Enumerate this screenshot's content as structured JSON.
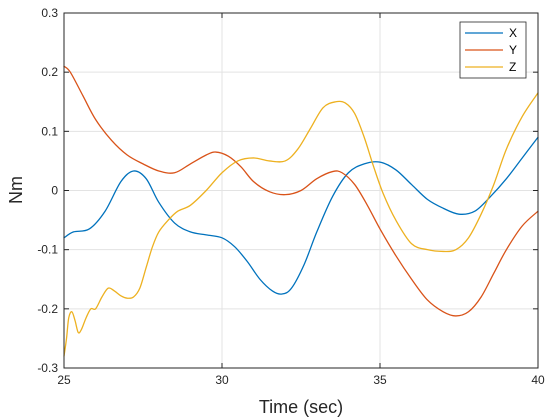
{
  "chart_data": {
    "type": "line",
    "xlabel": "Time (sec)",
    "ylabel": "Nm",
    "xlim": [
      25,
      40
    ],
    "ylim": [
      -0.3,
      0.3
    ],
    "xticks": [
      25,
      30,
      35,
      40
    ],
    "yticks": [
      -0.3,
      -0.2,
      -0.1,
      0,
      0.1,
      0.2,
      0.3
    ],
    "xtick_labels": [
      "25",
      "30",
      "35",
      "40"
    ],
    "ytick_labels": [
      "-0.3",
      "-0.2",
      "-0.1",
      "0",
      "0.1",
      "0.2",
      "0.3"
    ],
    "grid": true,
    "legend_position": "top-right",
    "series": [
      {
        "name": "X",
        "color": "#0072BD",
        "x": [
          25.0,
          25.3,
          25.8,
          26.3,
          26.8,
          27.2,
          27.6,
          28.0,
          28.5,
          29.0,
          29.5,
          30.0,
          30.4,
          30.8,
          31.2,
          31.6,
          31.9,
          32.2,
          32.6,
          33.0,
          33.5,
          34.0,
          34.5,
          35.0,
          35.5,
          36.0,
          36.5,
          37.0,
          37.5,
          38.0,
          38.5,
          39.0,
          39.5,
          40.0
        ],
        "y": [
          -0.08,
          -0.07,
          -0.065,
          -0.035,
          0.015,
          0.033,
          0.02,
          -0.02,
          -0.055,
          -0.07,
          -0.075,
          -0.08,
          -0.095,
          -0.12,
          -0.15,
          -0.17,
          -0.175,
          -0.165,
          -0.125,
          -0.07,
          -0.01,
          0.03,
          0.045,
          0.048,
          0.035,
          0.01,
          -0.015,
          -0.03,
          -0.04,
          -0.035,
          -0.01,
          0.02,
          0.055,
          0.09
        ]
      },
      {
        "name": "Y",
        "color": "#D95319",
        "x": [
          25.0,
          25.2,
          25.6,
          26.0,
          26.5,
          27.0,
          27.5,
          28.0,
          28.5,
          29.0,
          29.5,
          29.8,
          30.2,
          30.6,
          31.0,
          31.5,
          32.0,
          32.5,
          33.0,
          33.5,
          33.8,
          34.2,
          34.6,
          35.0,
          35.5,
          36.0,
          36.5,
          37.0,
          37.4,
          37.8,
          38.2,
          38.6,
          39.0,
          39.5,
          40.0
        ],
        "y": [
          0.21,
          0.2,
          0.16,
          0.12,
          0.085,
          0.06,
          0.045,
          0.033,
          0.03,
          0.045,
          0.06,
          0.065,
          0.058,
          0.04,
          0.015,
          -0.002,
          -0.007,
          0.0,
          0.02,
          0.032,
          0.03,
          0.01,
          -0.025,
          -0.065,
          -0.11,
          -0.15,
          -0.185,
          -0.205,
          -0.212,
          -0.205,
          -0.18,
          -0.14,
          -0.1,
          -0.06,
          -0.035
        ]
      },
      {
        "name": "Z",
        "color": "#EDB120",
        "x": [
          25.0,
          25.08,
          25.15,
          25.25,
          25.35,
          25.45,
          25.55,
          25.7,
          25.85,
          26.0,
          26.2,
          26.4,
          26.6,
          26.8,
          27.0,
          27.2,
          27.4,
          27.6,
          27.8,
          28.0,
          28.3,
          28.6,
          29.0,
          29.5,
          30.0,
          30.5,
          31.0,
          31.5,
          32.0,
          32.4,
          32.8,
          33.2,
          33.6,
          33.9,
          34.2,
          34.5,
          34.8,
          35.1,
          35.5,
          36.0,
          36.5,
          37.0,
          37.4,
          37.8,
          38.2,
          38.6,
          39.0,
          39.5,
          40.0
        ],
        "y": [
          -0.28,
          -0.25,
          -0.215,
          -0.205,
          -0.22,
          -0.24,
          -0.235,
          -0.215,
          -0.2,
          -0.2,
          -0.18,
          -0.165,
          -0.17,
          -0.178,
          -0.182,
          -0.18,
          -0.165,
          -0.13,
          -0.095,
          -0.07,
          -0.05,
          -0.035,
          -0.025,
          0.0,
          0.03,
          0.05,
          0.055,
          0.05,
          0.05,
          0.07,
          0.105,
          0.14,
          0.15,
          0.148,
          0.13,
          0.09,
          0.04,
          -0.005,
          -0.05,
          -0.09,
          -0.1,
          -0.103,
          -0.1,
          -0.08,
          -0.04,
          0.01,
          0.07,
          0.125,
          0.165
        ]
      }
    ]
  }
}
